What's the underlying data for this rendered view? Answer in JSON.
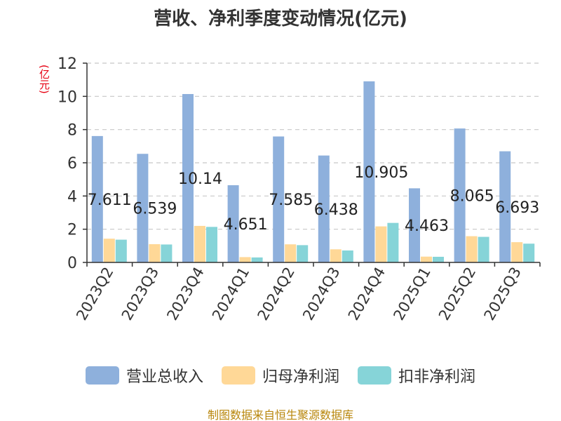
{
  "chart_data": {
    "type": "bar",
    "title": "营收、净利季度变动情况(亿元)",
    "ylabel": "(亿元)",
    "ylim": [
      0,
      12
    ],
    "yticks": [
      0,
      2,
      4,
      6,
      8,
      10,
      12
    ],
    "grid": true,
    "legend_position": "bottom",
    "categories": [
      "2023Q2",
      "2023Q3",
      "2023Q4",
      "2024Q1",
      "2024Q2",
      "2024Q3",
      "2024Q4",
      "2025Q1",
      "2025Q2",
      "2025Q3"
    ],
    "series": [
      {
        "name": "营业总收入",
        "color": "#8eb0dc",
        "values": [
          7.611,
          6.539,
          10.14,
          4.651,
          7.585,
          6.438,
          10.905,
          4.463,
          8.065,
          6.693
        ],
        "labels": [
          "7.611",
          "6.539",
          "10.14",
          "4.651",
          "7.585",
          "6.438",
          "10.905",
          "4.463",
          "8.065",
          "6.693"
        ]
      },
      {
        "name": "归母净利润",
        "color": "#ffd897",
        "values": [
          1.43,
          1.1,
          2.2,
          0.32,
          1.09,
          0.79,
          2.17,
          0.35,
          1.58,
          1.22
        ]
      },
      {
        "name": "扣非净利润",
        "color": "#86d4d8",
        "values": [
          1.37,
          1.08,
          2.14,
          0.3,
          1.04,
          0.72,
          2.38,
          0.34,
          1.54,
          1.13
        ]
      }
    ]
  },
  "source": "制图数据来自恒生聚源数据库"
}
